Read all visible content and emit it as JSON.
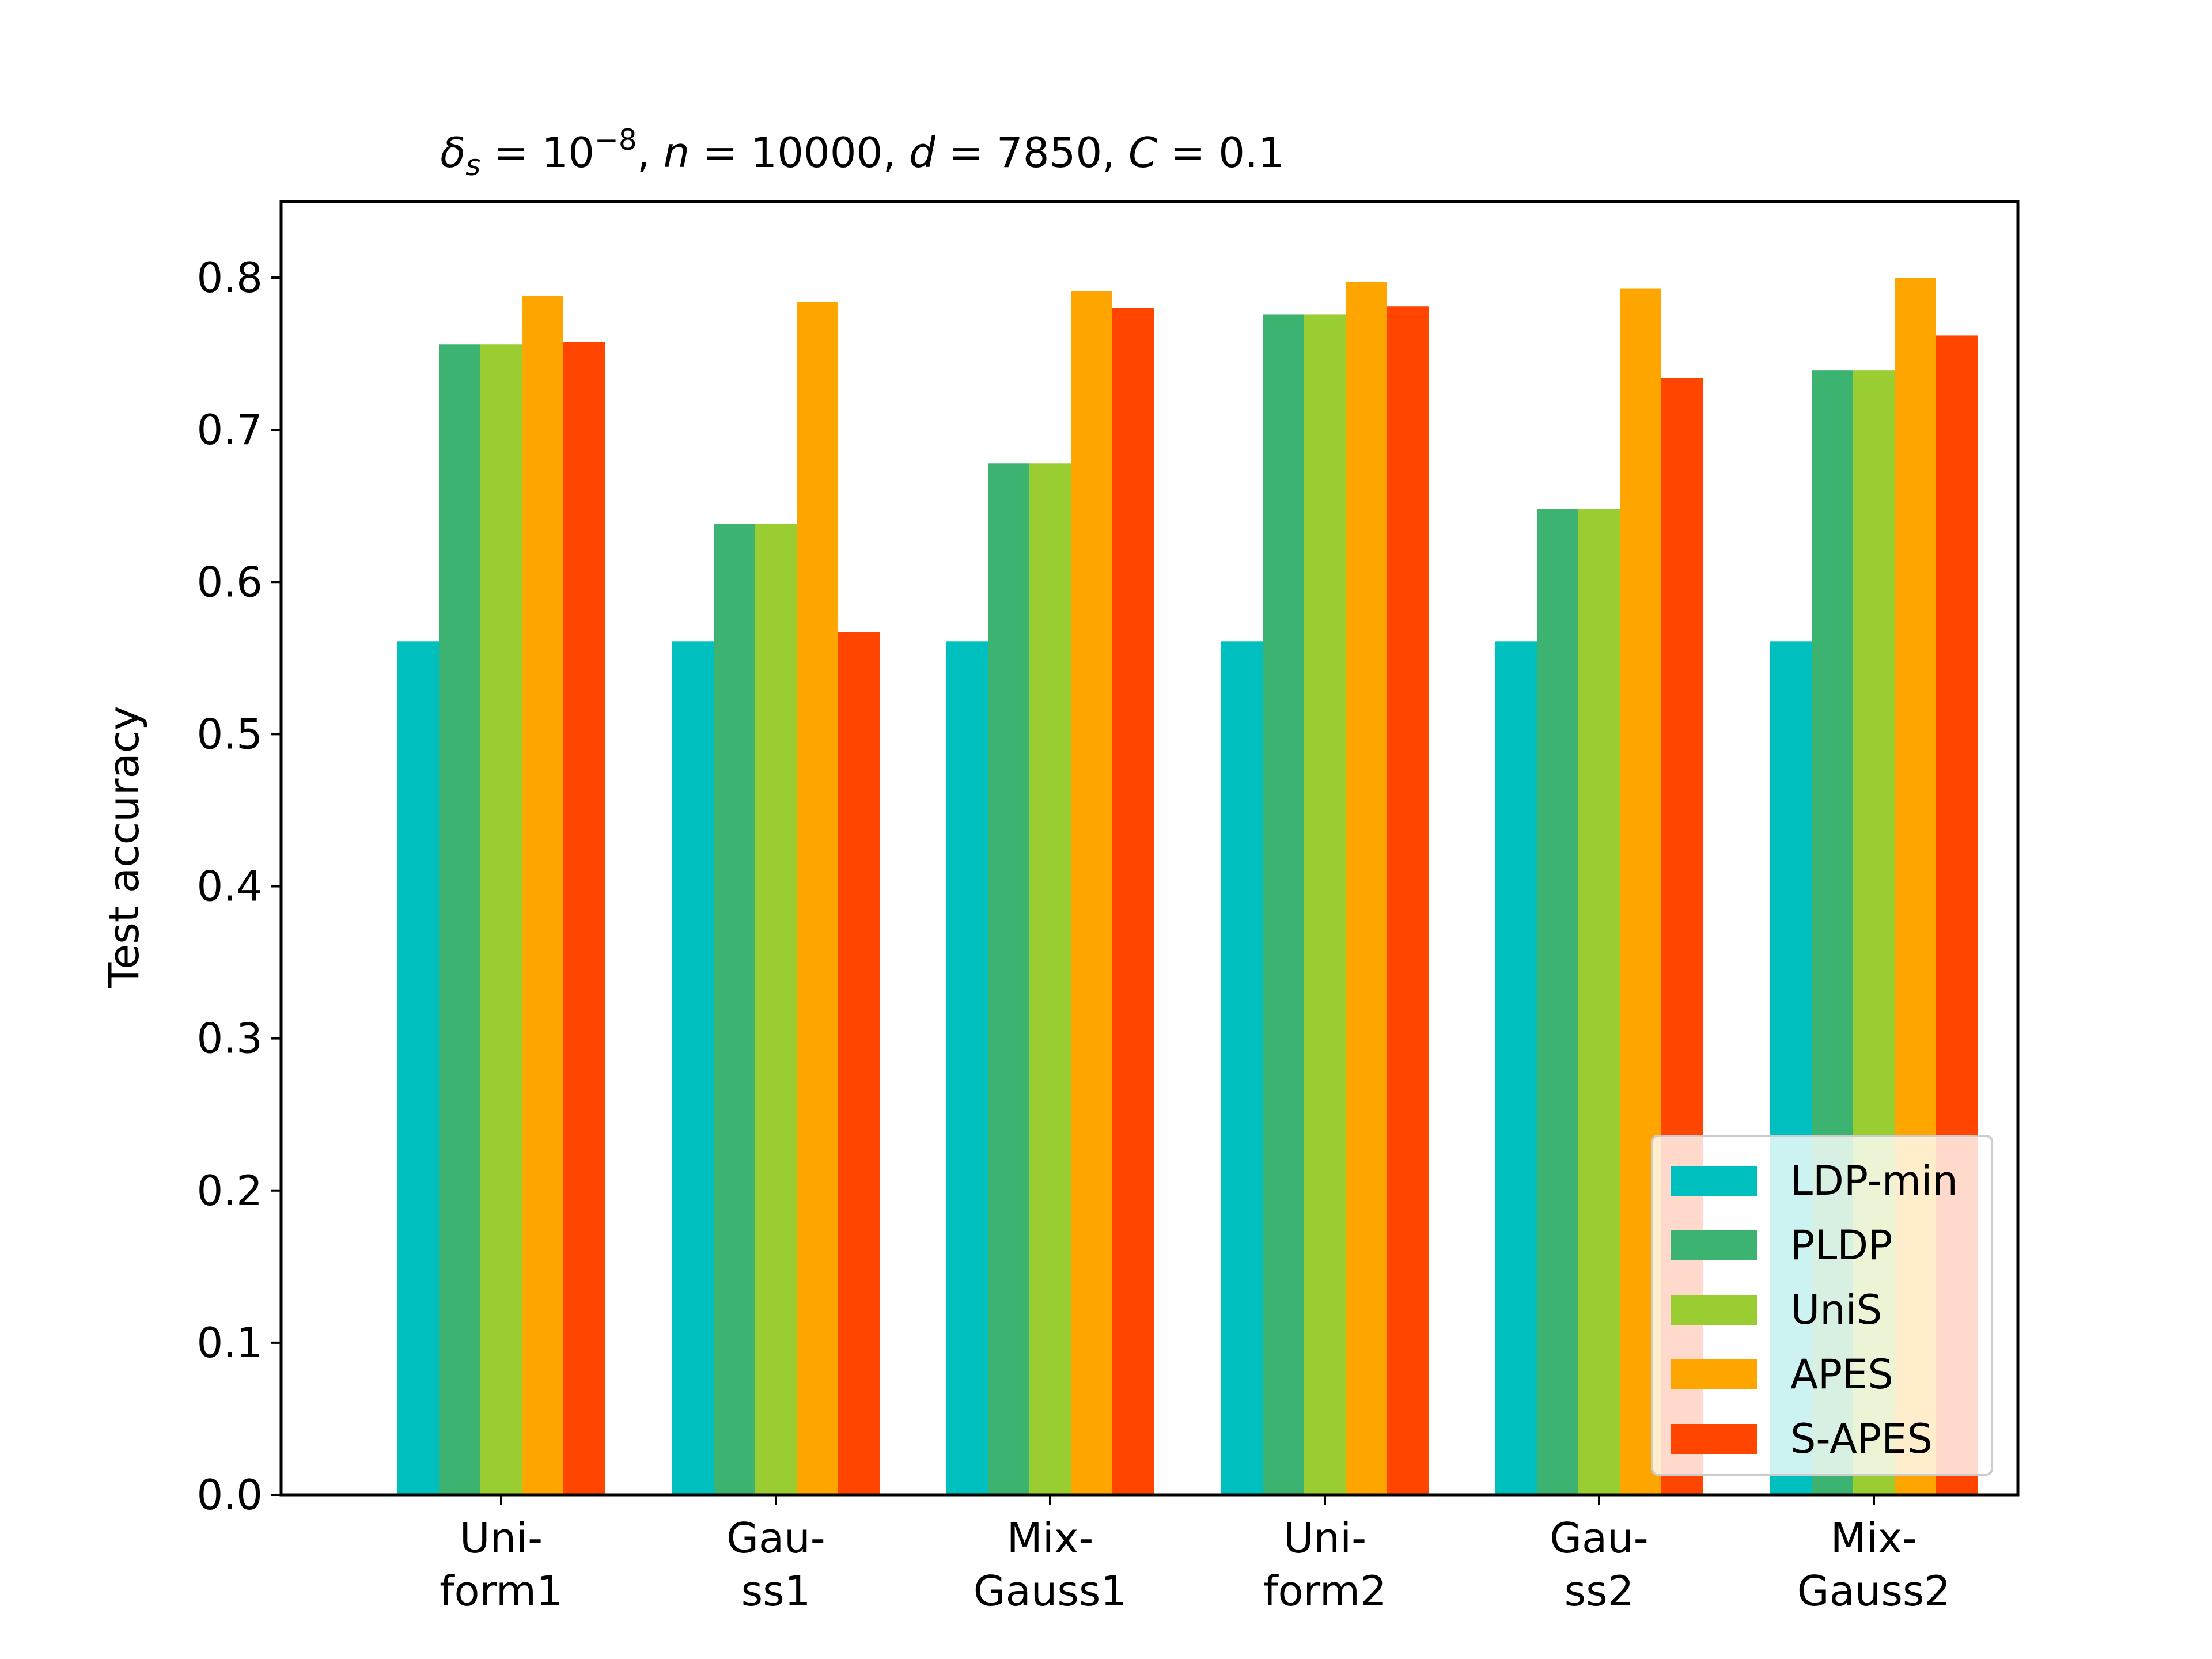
{
  "chart_data": {
    "type": "bar",
    "title": "δ_s = 10^−8, n = 10000, d = 7850, C = 0.1",
    "title_parts": {
      "delta": "δ",
      "delta_sub": "s",
      "eq1": " = 10",
      "exp": "−8",
      "rest_n": ", ",
      "n": "n",
      "eq2": " = 10000, ",
      "d": "d",
      "eq3": " = 7850, ",
      "c": "C",
      "eq4": " = 0.1"
    },
    "xlabel": "",
    "ylabel": "Test accuracy",
    "ylim": [
      0,
      0.85
    ],
    "yticks": [
      0.0,
      0.1,
      0.2,
      0.3,
      0.4,
      0.5,
      0.6,
      0.7,
      0.8
    ],
    "ytick_labels": [
      "0.0",
      "0.1",
      "0.2",
      "0.3",
      "0.4",
      "0.5",
      "0.6",
      "0.7",
      "0.8"
    ],
    "categories": [
      [
        "Uni-",
        "form1"
      ],
      [
        "Gau-",
        "ss1"
      ],
      [
        "Mix-",
        "Gauss1"
      ],
      [
        "Uni-",
        "form2"
      ],
      [
        "Gau-",
        "ss2"
      ],
      [
        "Mix-",
        "Gauss2"
      ]
    ],
    "series": [
      {
        "name": "LDP-min",
        "color": "#00BFBF",
        "values": [
          0.561,
          0.561,
          0.561,
          0.561,
          0.561,
          0.561
        ]
      },
      {
        "name": "PLDP",
        "color": "#3CB371",
        "values": [
          0.756,
          0.638,
          0.678,
          0.776,
          0.648,
          0.739
        ]
      },
      {
        "name": "UniS",
        "color": "#9ACD32",
        "values": [
          0.756,
          0.638,
          0.678,
          0.776,
          0.648,
          0.739
        ]
      },
      {
        "name": "APES",
        "color": "#FFA500",
        "values": [
          0.788,
          0.784,
          0.791,
          0.797,
          0.793,
          0.8
        ]
      },
      {
        "name": "S-APES",
        "color": "#FF4500",
        "values": [
          0.758,
          0.567,
          0.78,
          0.781,
          0.734,
          0.762
        ]
      }
    ],
    "grid": false,
    "legend_position": "lower-right"
  }
}
